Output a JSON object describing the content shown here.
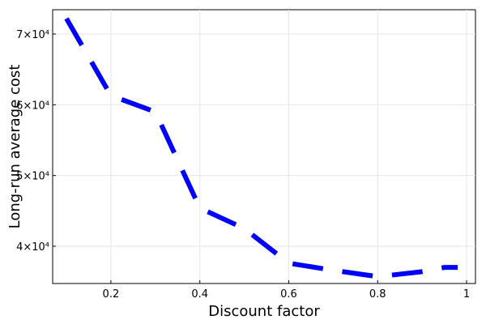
{
  "chart_data": {
    "type": "line",
    "x_label": "Discount factor",
    "y_label": "Long-run average cost",
    "x": [
      0.1,
      0.2,
      0.3,
      0.4,
      0.5,
      0.6,
      0.7,
      0.8,
      0.9,
      0.95,
      0.98
    ],
    "series": [
      {
        "color": "#0000ff",
        "values": [
          72200,
          61300,
          59000,
          45400,
          42500,
          37600,
          36600,
          35700,
          36400,
          37000,
          37000
        ]
      }
    ],
    "xlim": [
      0.069,
      1.02
    ],
    "xticks": [
      0.2,
      0.4,
      0.6,
      0.8,
      1.0
    ],
    "ylim": [
      34730,
      73440
    ],
    "yticks": [
      {
        "value": 40000,
        "label": "4×10⁴"
      },
      {
        "value": 50000,
        "label": "5×10⁴"
      },
      {
        "value": 60000,
        "label": "6×10⁴"
      },
      {
        "value": 70000,
        "label": "7×10⁴"
      }
    ],
    "grid": true,
    "line_style": "dash"
  }
}
